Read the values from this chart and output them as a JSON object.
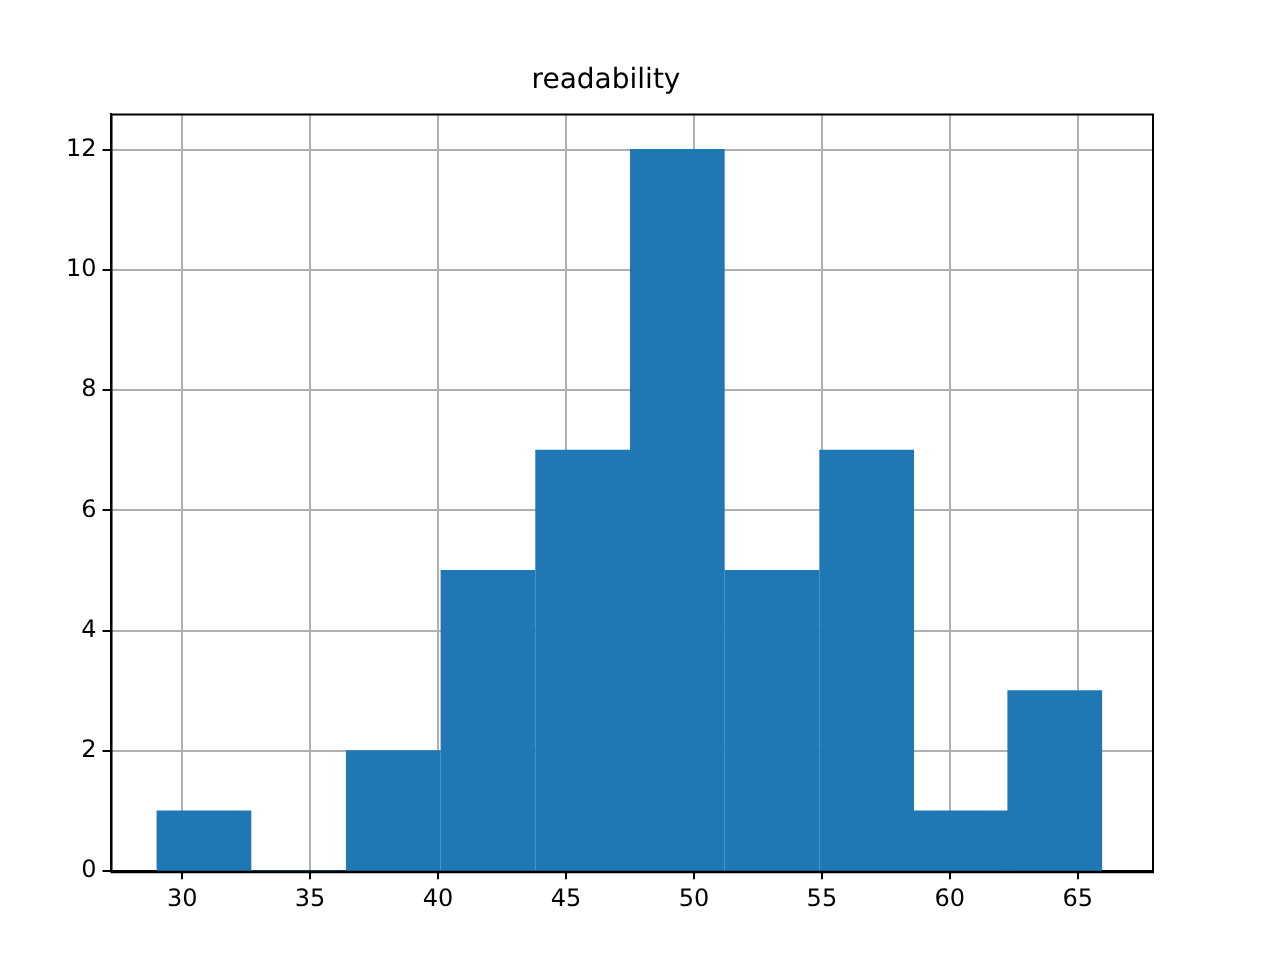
{
  "chart_data": {
    "type": "histogram",
    "title": "readability",
    "bins": [
      29.0,
      32.7,
      36.4,
      40.1,
      43.8,
      47.5,
      51.2,
      54.9,
      58.6,
      62.3,
      65.9
    ],
    "values": [
      1,
      0,
      2,
      5,
      7,
      12,
      5,
      7,
      1,
      3
    ],
    "color": "#1f77b4",
    "xlim": [
      27.2,
      67.9
    ],
    "xticks": [
      30,
      35,
      40,
      45,
      50,
      55,
      60,
      65
    ],
    "ylim": [
      0,
      12.6
    ],
    "yticks": [
      0,
      2,
      4,
      6,
      8,
      10,
      12
    ],
    "grid": true
  }
}
